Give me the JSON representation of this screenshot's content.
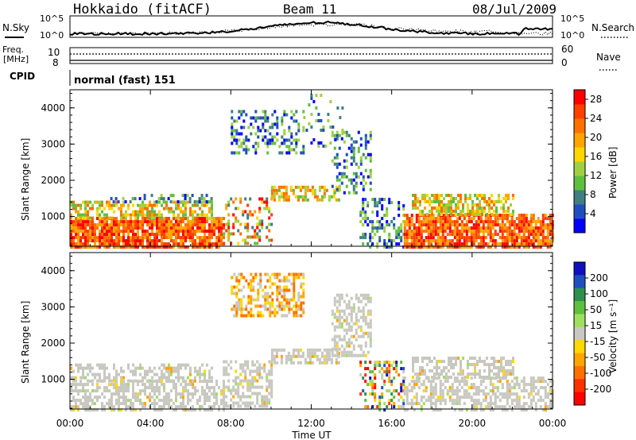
{
  "header": {
    "title": "Hokkaido (fitACF)",
    "beam": "Beam 11",
    "date": "08/Jul/2009"
  },
  "summary": {
    "nsky_label": "N.Sky",
    "nsearch_label": "N.Search",
    "nsky_ticks": [
      "10^5",
      "10^0"
    ],
    "nsearch_ticks": [
      "10^5",
      "10^0"
    ],
    "freq_label_line1": "Freq.",
    "freq_label_line2": "[MHz]",
    "freq_ticks": [
      "10",
      "8"
    ],
    "nave_label": "Nave",
    "nave_ticks": [
      "60",
      "0"
    ],
    "cpid_label": "CPID",
    "cpid_text": "normal (fast) 151"
  },
  "colors": {
    "axis": "#000000",
    "power_scale": [
      "#0000ff",
      "#1f4fbf",
      "#3f7f7f",
      "#5fbf3f",
      "#a0d040",
      "#ffd700",
      "#ffa500",
      "#ff7000",
      "#ff4000",
      "#ff0000"
    ],
    "velocity_scale": [
      "#1010c0",
      "#1f4fbf",
      "#2f8f4f",
      "#5fbf3f",
      "#9fdf5f",
      "#c8c8c0",
      "#ffd700",
      "#ffa500",
      "#ff7000",
      "#ff3000",
      "#ff0000"
    ]
  },
  "chart_data": [
    {
      "type": "heatmap",
      "title": "Power",
      "xlabel": "Time UT",
      "ylabel": "Slant Range [km]",
      "x_ticks": [
        "00:00",
        "04:00",
        "08:00",
        "12:00",
        "16:00",
        "20:00",
        "00:00"
      ],
      "xlim_hours": [
        0,
        24
      ],
      "y_ticks": [
        1000,
        2000,
        3000,
        4000
      ],
      "ylim": [
        180,
        4500
      ],
      "colorbar": {
        "label": "Power [dB]",
        "ticks": [
          4,
          8,
          12,
          16,
          20,
          24,
          28
        ],
        "range": [
          0,
          30
        ]
      },
      "regions": [
        {
          "t0": 0.0,
          "t1": 7.6,
          "r0": 200,
          "r1": 1000,
          "level": "strong"
        },
        {
          "t0": 0.0,
          "t1": 7.0,
          "r0": 1000,
          "r1": 1450,
          "level": "medium"
        },
        {
          "t0": 2.0,
          "t1": 7.2,
          "r0": 1450,
          "r1": 1700,
          "level": "weak"
        },
        {
          "t0": 7.6,
          "t1": 10.0,
          "r0": 300,
          "r1": 1600,
          "level": "mixed"
        },
        {
          "t0": 10.0,
          "t1": 13.4,
          "r0": 1500,
          "r1": 1900,
          "level": "medium"
        },
        {
          "t0": 13.0,
          "t1": 15.0,
          "r0": 1700,
          "r1": 3400,
          "level": "weak"
        },
        {
          "t0": 8.0,
          "t1": 11.6,
          "r0": 2800,
          "r1": 4000,
          "level": "weak"
        },
        {
          "t0": 14.4,
          "t1": 16.6,
          "r0": 200,
          "r1": 1600,
          "level": "weak"
        },
        {
          "t0": 16.6,
          "t1": 24.0,
          "r0": 200,
          "r1": 1100,
          "level": "strong"
        },
        {
          "t0": 17.0,
          "t1": 22.0,
          "r0": 1100,
          "r1": 1650,
          "level": "medium"
        },
        {
          "t0": 11.6,
          "t1": 13.6,
          "r0": 2900,
          "r1": 4400,
          "level": "sparse"
        }
      ]
    },
    {
      "type": "heatmap",
      "title": "Velocity",
      "xlabel": "Time UT",
      "ylabel": "Slant Range [km]",
      "x_ticks": [
        "00:00",
        "04:00",
        "08:00",
        "12:00",
        "16:00",
        "20:00",
        "00:00"
      ],
      "xlim_hours": [
        0,
        24
      ],
      "y_ticks": [
        1000,
        2000,
        3000,
        4000
      ],
      "ylim": [
        180,
        4500
      ],
      "colorbar": {
        "label": "Velocity [m s⁻¹]",
        "ticks": [
          200,
          100,
          50,
          15,
          -15,
          -50,
          -100,
          -200
        ],
        "range": [
          -250,
          250
        ]
      },
      "regions": [
        {
          "t0": 0.0,
          "t1": 7.6,
          "r0": 200,
          "r1": 1000,
          "level": "ground"
        },
        {
          "t0": 0.0,
          "t1": 7.0,
          "r0": 1000,
          "r1": 1450,
          "level": "ground"
        },
        {
          "t0": 7.6,
          "t1": 10.0,
          "r0": 300,
          "r1": 1600,
          "level": "ground"
        },
        {
          "t0": 10.0,
          "t1": 13.4,
          "r0": 1500,
          "r1": 1900,
          "level": "ground"
        },
        {
          "t0": 13.0,
          "t1": 15.0,
          "r0": 1700,
          "r1": 3400,
          "level": "ground"
        },
        {
          "t0": 8.0,
          "t1": 11.6,
          "r0": 2800,
          "r1": 4000,
          "level": "negative"
        },
        {
          "t0": 14.4,
          "t1": 16.6,
          "r0": 200,
          "r1": 1600,
          "level": "mixed"
        },
        {
          "t0": 16.6,
          "t1": 24.0,
          "r0": 200,
          "r1": 1100,
          "level": "ground"
        },
        {
          "t0": 17.0,
          "t1": 22.0,
          "r0": 1100,
          "r1": 1650,
          "level": "ground"
        }
      ]
    }
  ]
}
